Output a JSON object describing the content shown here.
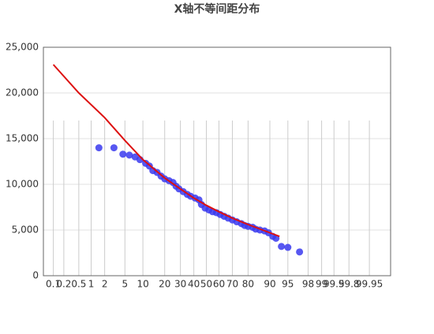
{
  "chart_data": {
    "type": "scatter",
    "title": "X轴不等间距分布",
    "xscale": "probability",
    "xlim": [
      0.05,
      99.99
    ],
    "xticks": [
      0.1,
      0.2,
      0.5,
      1,
      2,
      5,
      10,
      20,
      30,
      40,
      50,
      60,
      70,
      80,
      90,
      95,
      98,
      99,
      99.5,
      99.8,
      99.95
    ],
    "ylim": [
      0,
      25000
    ],
    "yticks": [
      {
        "value": 0,
        "label": "0"
      },
      {
        "value": 5000,
        "label": "5,000"
      },
      {
        "value": 10000,
        "label": "10,000"
      },
      {
        "value": 15000,
        "label": "15,000"
      },
      {
        "value": 20000,
        "label": "20,000"
      },
      {
        "value": 25000,
        "label": "25,000"
      }
    ],
    "grid": true,
    "series": [
      {
        "type": "scatter",
        "color": "#3a3aee",
        "x": [
          1.5,
          3.1,
          4.6,
          6,
          7.5,
          9,
          11,
          12.5,
          14,
          16,
          18,
          20,
          22.5,
          25,
          27,
          29,
          32,
          35,
          37.5,
          41,
          44,
          46,
          49,
          52,
          55,
          58,
          61,
          64,
          67,
          70,
          73,
          76,
          78,
          80,
          82.5,
          84,
          86,
          88,
          89.5,
          91,
          92,
          93.5,
          95,
          97
        ],
        "values": [
          14000,
          14000,
          13300,
          13200,
          13000,
          12700,
          12300,
          12000,
          11500,
          11300,
          10900,
          10600,
          10400,
          10200,
          9800,
          9500,
          9200,
          8900,
          8700,
          8500,
          8300,
          7800,
          7400,
          7200,
          7000,
          6900,
          6700,
          6500,
          6300,
          6100,
          5900,
          5700,
          5500,
          5400,
          5300,
          5100,
          5000,
          4900,
          4700,
          4300,
          4100,
          3200,
          3100,
          2600
        ]
      },
      {
        "type": "line",
        "color": "#dd1111",
        "x": [
          0.1,
          0.5,
          2,
          5,
          10,
          20,
          30,
          40,
          50,
          60,
          70,
          80,
          90,
          93
        ],
        "values": [
          23100,
          20000,
          17300,
          14800,
          12700,
          10700,
          9500,
          8500,
          7700,
          7000,
          6300,
          5600,
          4700,
          4300
        ]
      }
    ]
  }
}
